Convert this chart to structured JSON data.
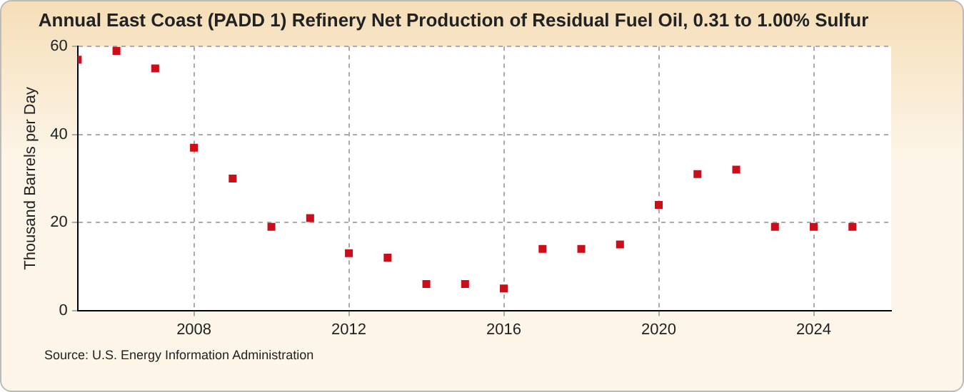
{
  "chart_data": {
    "type": "scatter",
    "title": "Annual East Coast (PADD 1) Refinery Net Production of Residual Fuel Oil, 0.31 to 1.00% Sulfur",
    "ylabel": "Thousand Barrels per Day",
    "x": [
      2005,
      2006,
      2007,
      2008,
      2009,
      2010,
      2011,
      2012,
      2013,
      2014,
      2015,
      2016,
      2017,
      2018,
      2019,
      2020,
      2021,
      2022,
      2023,
      2024,
      2025
    ],
    "series": [
      {
        "color": "#cc0e1b",
        "values": [
          57,
          59,
          55,
          37,
          30,
          19,
          21,
          13,
          12,
          6,
          6,
          5,
          14,
          14,
          15,
          24,
          31,
          32,
          19,
          19,
          19
        ]
      }
    ],
    "xlim": [
      2005,
      2026
    ],
    "xticks": [
      2008,
      2012,
      2016,
      2020,
      2024
    ],
    "ylim": [
      0,
      60
    ],
    "yticks": [
      0,
      20,
      40,
      60
    ],
    "grid": true,
    "marker": "square",
    "legend": false,
    "annotations": [
      "Source: U.S. Energy Information Administration"
    ]
  }
}
